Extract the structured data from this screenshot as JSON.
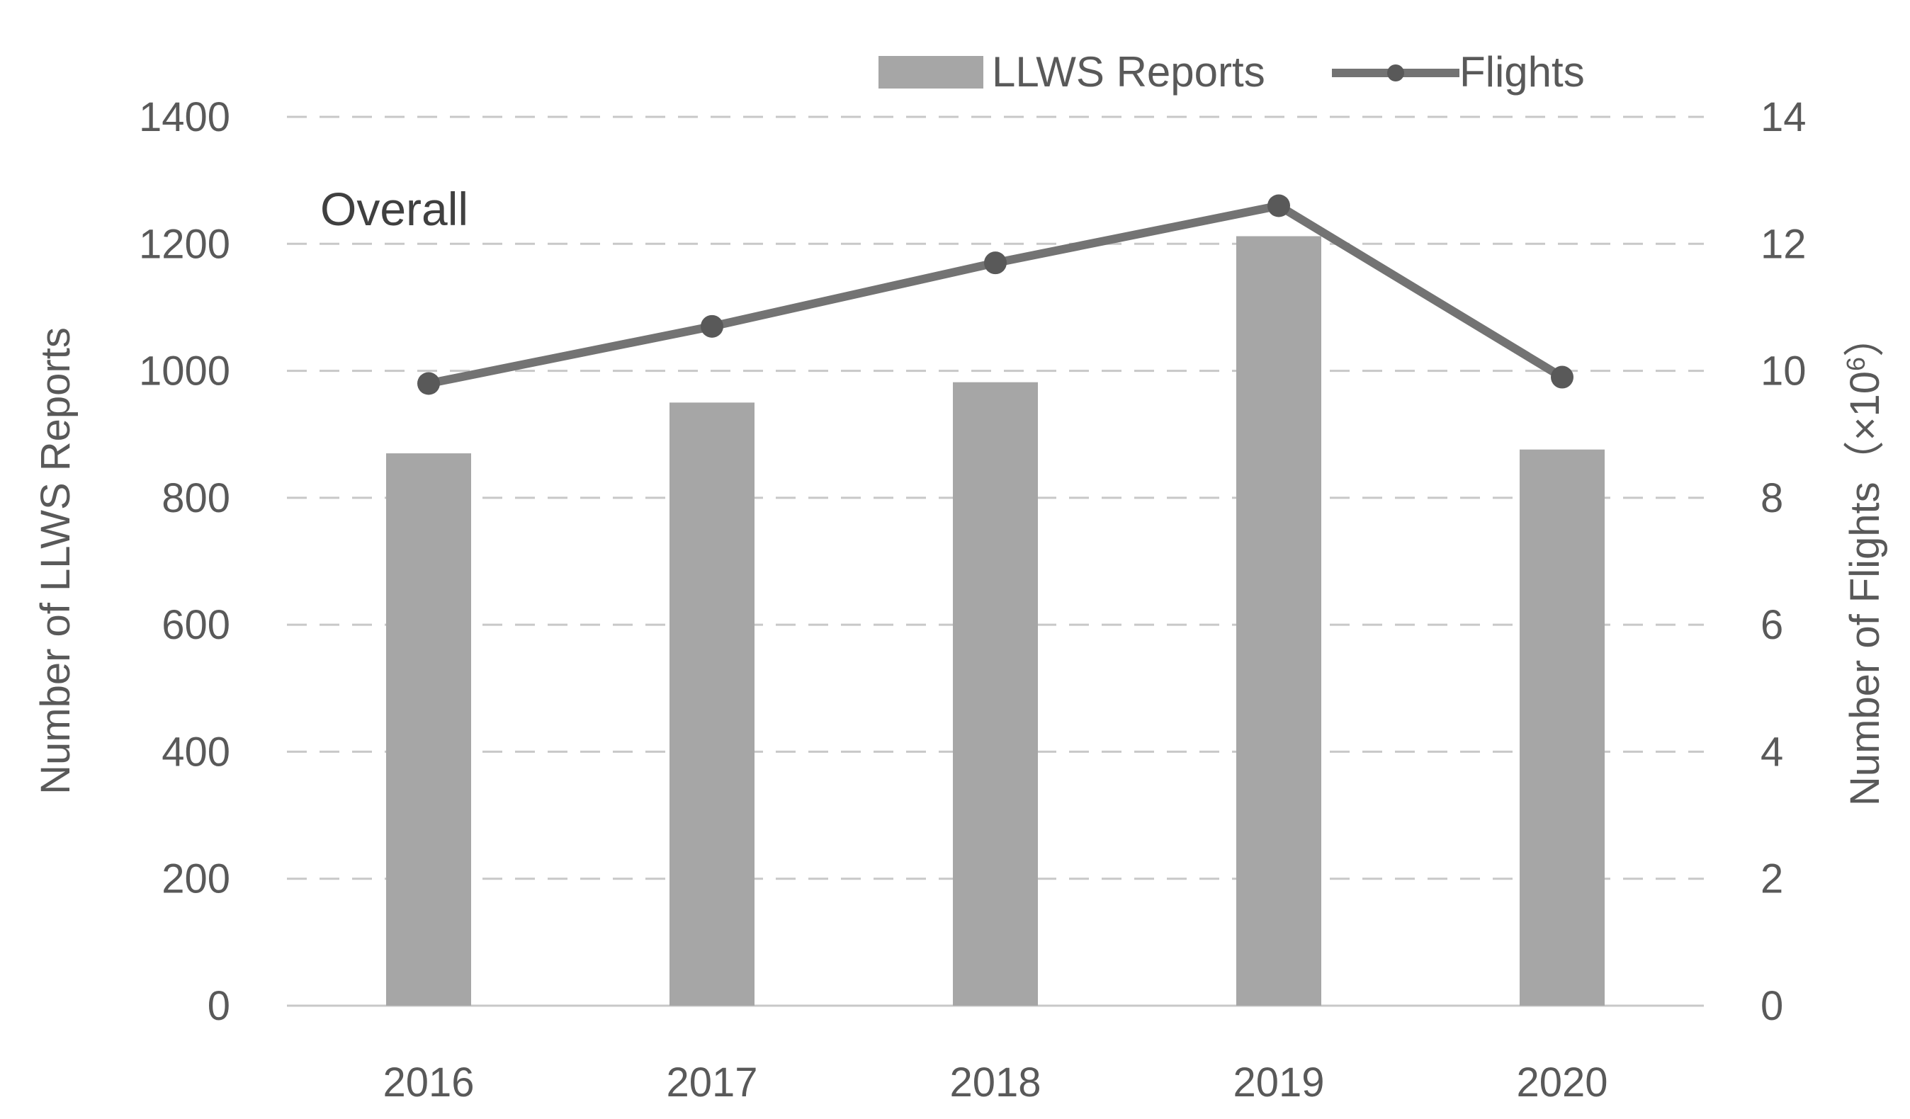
{
  "chart_data": {
    "type": "bar",
    "categories": [
      "2016",
      "2017",
      "2018",
      "2019",
      "2020"
    ],
    "series": [
      {
        "name": "LLWS Reports",
        "kind": "bar",
        "axis": "left",
        "values": [
          870,
          950,
          982,
          1212,
          876
        ]
      },
      {
        "name": "Flights",
        "kind": "line",
        "axis": "right",
        "values": [
          9.8,
          10.7,
          11.7,
          12.6,
          9.9
        ]
      }
    ],
    "annotation": "Overall",
    "ylabel": "Number of LLWS Reports",
    "ylabel_right": "Number of Flights（×10",
    "ylabel_right_exp": "6",
    "ylabel_right_close": "）",
    "ylim": [
      0,
      1400
    ],
    "ylim_right": [
      0,
      14
    ],
    "yticks": [
      "0",
      "200",
      "400",
      "600",
      "800",
      "1000",
      "1200",
      "1400"
    ],
    "yticks_right": [
      "0",
      "2",
      "4",
      "6",
      "8",
      "10",
      "12",
      "14"
    ],
    "grid": true,
    "legend_position": "top-right",
    "colors": {
      "bar": "#a6a6a6",
      "line": "#737373",
      "marker": "#595959",
      "grid": "#c8c8c8",
      "text": "#595959"
    }
  }
}
